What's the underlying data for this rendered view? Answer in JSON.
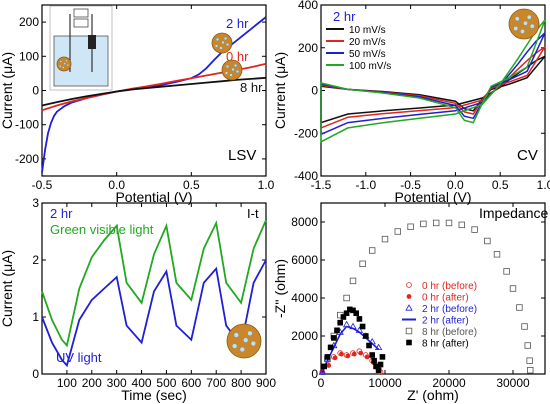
{
  "chart_data": [
    {
      "panel": "LSV",
      "type": "line",
      "panel_label": "LSV",
      "xlabel": "Potential (V)",
      "ylabel": "Current (μA)",
      "xlim": [
        -0.5,
        1.0
      ],
      "ylim": [
        -250,
        250
      ],
      "xticks": [
        "-0.5",
        "0.0",
        "0.5",
        "1.0"
      ],
      "xtick_values": [
        -0.5,
        0.0,
        0.5,
        1.0
      ],
      "yticks": [
        "-200",
        "-100",
        "0",
        "100",
        "200"
      ],
      "ytick_values": [
        -200,
        -100,
        0,
        100,
        200
      ],
      "series": [
        {
          "name": "2 hr",
          "color": "#1f1fd6",
          "x": [
            -0.5,
            -0.48,
            -0.46,
            -0.44,
            -0.42,
            -0.4,
            -0.35,
            -0.3,
            -0.2,
            -0.1,
            0.0,
            0.1,
            0.2,
            0.3,
            0.4,
            0.5,
            0.55,
            0.6,
            0.65,
            0.7,
            0.8,
            0.9,
            1.0
          ],
          "y": [
            -240,
            -175,
            -125,
            -95,
            -75,
            -62,
            -46,
            -35,
            -22,
            -12,
            -3,
            3,
            9,
            16,
            25,
            36,
            47,
            65,
            88,
            110,
            145,
            180,
            215
          ]
        },
        {
          "name": "0 hr",
          "color": "#e0261e",
          "x": [
            -0.5,
            -0.4,
            -0.3,
            -0.2,
            -0.1,
            0.0,
            0.1,
            0.2,
            0.3,
            0.4,
            0.5,
            0.6,
            0.7,
            0.8,
            0.9,
            1.0
          ],
          "y": [
            -58,
            -44,
            -32,
            -22,
            -12,
            -3,
            5,
            12,
            20,
            28,
            36,
            44,
            52,
            60,
            68,
            78
          ]
        },
        {
          "name": "8 hr",
          "color": "#111111",
          "x": [
            -0.5,
            -0.4,
            -0.3,
            -0.2,
            -0.1,
            0.0,
            0.1,
            0.2,
            0.3,
            0.4,
            0.5,
            0.6,
            0.7,
            0.8,
            0.9,
            1.0
          ],
          "y": [
            -44,
            -34,
            -25,
            -17,
            -10,
            -3,
            3,
            7,
            11,
            15,
            19,
            23,
            27,
            31,
            34,
            37
          ]
        }
      ]
    },
    {
      "panel": "CV",
      "type": "line",
      "panel_label": "CV",
      "legend_title": "2 hr",
      "xlabel": "Potential (V)",
      "ylabel": "Current (μA)",
      "xlim": [
        -1.5,
        1.0
      ],
      "ylim": [
        -400,
        400
      ],
      "xticks": [
        "-1.5",
        "-1.0",
        "-0.5",
        "0.0",
        "0.5",
        "1.0"
      ],
      "xtick_values": [
        -1.5,
        -1.0,
        -0.5,
        0.0,
        0.5,
        1.0
      ],
      "yticks": [
        "-400",
        "-200",
        "0",
        "200",
        "400"
      ],
      "ytick_values": [
        -400,
        -200,
        0,
        200,
        400
      ],
      "legend_position": "top-left",
      "series": [
        {
          "name": "10 mV/s",
          "color": "#111111",
          "x_forward": [
            -1.5,
            -1.2,
            -0.8,
            -0.4,
            0.0,
            0.3,
            0.5,
            0.6,
            0.7,
            0.8,
            0.9,
            1.0
          ],
          "y_forward": [
            -150,
            -110,
            -95,
            -82,
            -68,
            -35,
            15,
            50,
            80,
            110,
            140,
            160
          ],
          "x_reverse": [
            1.0,
            0.8,
            0.6,
            0.4,
            0.3,
            0.2,
            0.1,
            0.0,
            -0.4,
            -0.8,
            -1.2,
            -1.5
          ],
          "y_reverse": [
            160,
            60,
            30,
            5,
            -40,
            -95,
            -85,
            -50,
            -20,
            -5,
            5,
            20
          ]
        },
        {
          "name": "20 mV/s",
          "color": "#e0261e",
          "x_forward": [
            -1.5,
            -1.2,
            -0.8,
            -0.4,
            0.0,
            0.3,
            0.5,
            0.6,
            0.7,
            0.8,
            0.9,
            1.0
          ],
          "y_forward": [
            -175,
            -125,
            -108,
            -94,
            -80,
            -45,
            20,
            60,
            100,
            140,
            175,
            205
          ],
          "x_reverse": [
            1.0,
            0.8,
            0.6,
            0.4,
            0.3,
            0.2,
            0.1,
            0.0,
            -0.4,
            -0.8,
            -1.2,
            -1.5
          ],
          "y_reverse": [
            205,
            70,
            40,
            10,
            -45,
            -110,
            -100,
            -60,
            -25,
            -8,
            5,
            25
          ]
        },
        {
          "name": "50 mV/s",
          "color": "#1f1fd6",
          "x_forward": [
            -1.5,
            -1.2,
            -0.8,
            -0.4,
            0.0,
            0.3,
            0.5,
            0.6,
            0.7,
            0.8,
            0.9,
            1.0
          ],
          "y_forward": [
            -205,
            -150,
            -130,
            -112,
            -95,
            -55,
            25,
            75,
            125,
            180,
            230,
            270
          ],
          "x_reverse": [
            1.0,
            0.8,
            0.6,
            0.4,
            0.3,
            0.2,
            0.1,
            0.0,
            -0.4,
            -0.8,
            -1.2,
            -1.5
          ],
          "y_reverse": [
            270,
            90,
            50,
            15,
            -55,
            -130,
            -120,
            -70,
            -30,
            -10,
            5,
            30
          ]
        },
        {
          "name": "100 mV/s",
          "color": "#22a822",
          "x_forward": [
            -1.5,
            -1.2,
            -0.8,
            -0.4,
            0.0,
            0.3,
            0.5,
            0.6,
            0.7,
            0.8,
            0.9,
            1.0
          ],
          "y_forward": [
            -240,
            -175,
            -150,
            -130,
            -110,
            -65,
            30,
            90,
            150,
            215,
            280,
            330
          ],
          "x_reverse": [
            1.0,
            0.8,
            0.6,
            0.4,
            0.3,
            0.2,
            0.1,
            0.0,
            -0.4,
            -0.8,
            -1.2,
            -1.5
          ],
          "y_reverse": [
            330,
            110,
            60,
            20,
            -60,
            -150,
            -140,
            -80,
            -35,
            -12,
            5,
            35
          ]
        }
      ]
    },
    {
      "panel": "I-t",
      "type": "line",
      "panel_label": "I-t",
      "label_2hr": "2 hr",
      "xlabel": "Time (sec)",
      "ylabel": "Current (μA)",
      "xlim": [
        0,
        900
      ],
      "ylim": [
        0,
        3
      ],
      "xticks": [
        "100",
        "200",
        "300",
        "400",
        "500",
        "600",
        "700",
        "800",
        "900"
      ],
      "xtick_values": [
        100,
        200,
        300,
        400,
        500,
        600,
        700,
        800,
        900
      ],
      "yticks": [
        "0",
        "1",
        "2",
        "3"
      ],
      "ytick_values": [
        0,
        1,
        2,
        3
      ],
      "series": [
        {
          "name": "Green visible light",
          "color": "#22a822",
          "x": [
            0,
            40,
            80,
            100,
            150,
            200,
            250,
            300,
            340,
            400,
            450,
            500,
            540,
            600,
            650,
            700,
            740,
            800,
            850,
            900
          ],
          "y": [
            1.45,
            0.95,
            0.6,
            0.5,
            1.5,
            2.05,
            2.35,
            2.6,
            1.6,
            1.25,
            2.1,
            2.6,
            1.6,
            1.3,
            2.2,
            2.65,
            1.6,
            1.25,
            2.2,
            2.7
          ]
        },
        {
          "name": "UV light",
          "color": "#1f1fd6",
          "x": [
            0,
            40,
            80,
            100,
            150,
            200,
            250,
            300,
            340,
            400,
            450,
            500,
            540,
            600,
            650,
            700,
            740,
            800,
            850,
            900
          ],
          "y": [
            1.0,
            0.55,
            0.25,
            0.15,
            0.95,
            1.3,
            1.5,
            1.7,
            0.85,
            0.55,
            1.45,
            1.8,
            0.85,
            0.6,
            1.6,
            1.85,
            0.85,
            0.5,
            1.6,
            2.0
          ]
        }
      ]
    },
    {
      "panel": "Impedance",
      "type": "scatter",
      "panel_label": "Impedance",
      "xlabel": "Z' (ohm)",
      "ylabel": "-Z'' (ohm)",
      "xlim": [
        0,
        35000
      ],
      "ylim": [
        0,
        9000
      ],
      "xticks": [
        "0",
        "10000",
        "20000",
        "30000"
      ],
      "xtick_values": [
        0,
        10000,
        20000,
        30000
      ],
      "yticks": [
        "0",
        "2000",
        "4000",
        "6000",
        "8000"
      ],
      "ytick_values": [
        0,
        2000,
        4000,
        6000,
        8000
      ],
      "legend_position": "center-right",
      "series": [
        {
          "name": "0 hr (before)",
          "color": "#e0261e",
          "marker": "open-circle",
          "connect": false,
          "x": [
            200,
            1000,
            2000,
            3000,
            4000,
            5000,
            6000,
            7000,
            8000,
            8800,
            9300
          ],
          "y": [
            100,
            500,
            900,
            1100,
            1000,
            1100,
            1200,
            1000,
            700,
            350,
            100
          ]
        },
        {
          "name": "0 hr (after)",
          "color": "#e0261e",
          "marker": "filled-circle",
          "connect": false,
          "x": [
            300,
            1200,
            2200,
            3200,
            4200,
            5200,
            6200,
            7200,
            8200,
            9000
          ],
          "y": [
            80,
            450,
            850,
            1050,
            950,
            1050,
            1100,
            900,
            600,
            250
          ]
        },
        {
          "name": "2 hr (before)",
          "color": "#1f1fd6",
          "marker": "open-triangle",
          "connect": false,
          "x": [
            200,
            1000,
            2000,
            3000,
            4000,
            5000,
            6000,
            7000,
            8000,
            9000
          ],
          "y": [
            100,
            800,
            1500,
            2200,
            2600,
            2500,
            2300,
            2000,
            1700,
            1400
          ]
        },
        {
          "name": "2 hr (after)",
          "color": "#1f1fd6",
          "marker": "line",
          "connect": true,
          "x": [
            200,
            1000,
            2000,
            3000,
            4000,
            5000,
            6000,
            7000,
            8000,
            9000
          ],
          "y": [
            80,
            700,
            1400,
            2100,
            2500,
            2400,
            2200,
            1900,
            1600,
            1300
          ]
        },
        {
          "name": "8 hr (before)",
          "color": "#555555",
          "marker": "open-square",
          "connect": false,
          "x": [
            1000,
            2000,
            3000,
            4000,
            5000,
            6500,
            8000,
            10000,
            12000,
            14000,
            16000,
            18000,
            20000,
            22000,
            24000,
            26000,
            27500,
            29000,
            30000,
            31000,
            31800,
            32300,
            32600,
            32700
          ],
          "y": [
            800,
            2000,
            3100,
            4000,
            4900,
            5800,
            6500,
            7100,
            7500,
            7750,
            7900,
            7950,
            7950,
            7850,
            7600,
            7000,
            6300,
            5400,
            4500,
            3500,
            2500,
            1500,
            700,
            200
          ]
        },
        {
          "name": "8 hr (after)",
          "color": "#000000",
          "marker": "filled-square",
          "connect": false,
          "x": [
            500,
            1000,
            1500,
            2000,
            2500,
            3000,
            3500,
            4000,
            4500,
            5000,
            5500,
            6000,
            6500,
            7000,
            7500,
            8000,
            8300,
            8600,
            9000,
            9300,
            9600
          ],
          "y": [
            400,
            900,
            1400,
            1900,
            2300,
            2700,
            3000,
            3200,
            3400,
            3350,
            3200,
            2900,
            2500,
            2000,
            1500,
            1000,
            700,
            400,
            200,
            500,
            900
          ]
        }
      ]
    }
  ]
}
